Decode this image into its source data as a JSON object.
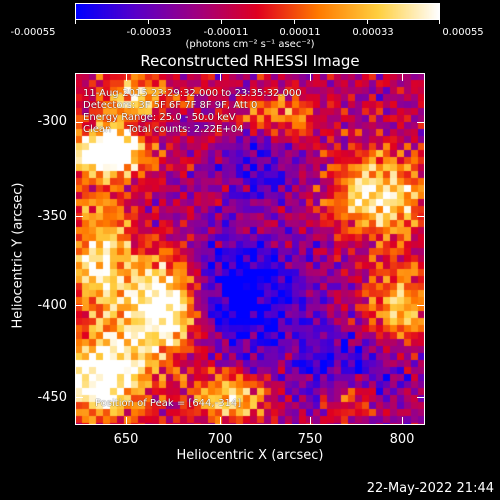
{
  "colorbar": {
    "ticks": [
      "-0.00055",
      "-0.00033",
      "-0.00011",
      "0.00011",
      "0.00033",
      "0.00055"
    ],
    "units": "(photons cm⁻² s⁻¹ asec⁻²)",
    "colors": [
      "#0000ff",
      "#5a00c8",
      "#a00080",
      "#e00020",
      "#ff7a00",
      "#ffd040",
      "#ffffff"
    ]
  },
  "title": "Reconstructed RHESSI Image",
  "annotations": {
    "time": "11-Aug-2015 23:29:32.000 to 23:35:32.000",
    "detectors": "Detectors: 3F 5F 6F 7F 8F 9F, Att 0",
    "energy": "Energy Range: 25.0 - 50.0 keV",
    "clean": "Clean     Total counts: 2.22E+04",
    "peak": "Position of Peak = [644,-314]"
  },
  "axes": {
    "xlabel": "Heliocentric X (arcsec)",
    "ylabel": "Heliocentric Y (arcsec)",
    "xticks": [
      "650",
      "700",
      "750",
      "800"
    ],
    "yticks": [
      "-300",
      "-350",
      "-400",
      "-450"
    ]
  },
  "datestamp": "22-May-2022 21:44"
}
